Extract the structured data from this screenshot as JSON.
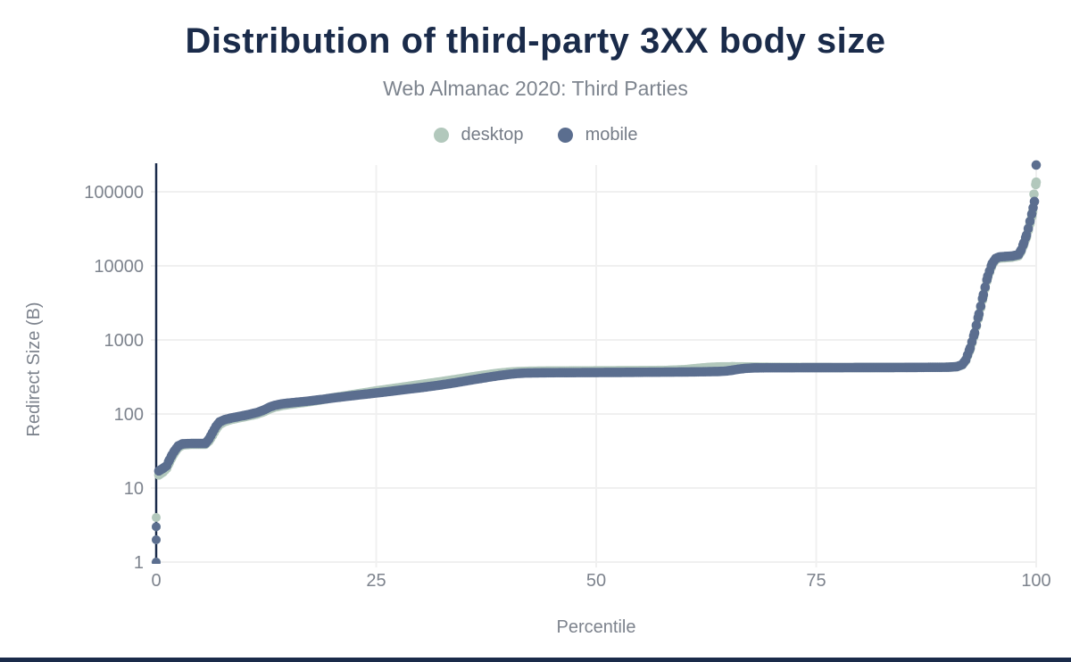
{
  "chart": {
    "title": "Distribution of third-party 3XX body size",
    "subtitle": "Web Almanac 2020: Third Parties",
    "xlabel": "Percentile",
    "ylabel": "Redirect Size (B)"
  },
  "colors": {
    "title": "#1a2b4a",
    "subtitle": "#7d848e",
    "tick_text": "#7d838d",
    "grid": "#f0f0f0",
    "axis": "#1a2b4a",
    "footer_bar": "#1a2b4a",
    "background": "#ffffff"
  },
  "chart_data": {
    "type": "scatter",
    "title": "Distribution of third-party 3XX body size",
    "subtitle": "Web Almanac 2020: Third Parties",
    "xlabel": "Percentile",
    "ylabel": "Redirect Size (B)",
    "x_ticks": [
      0,
      25,
      50,
      75,
      100
    ],
    "y_ticks": [
      1,
      10,
      100,
      1000,
      10000,
      100000
    ],
    "x_range": [
      0,
      100
    ],
    "y_range": [
      1,
      250000
    ],
    "y_scale": "log",
    "grid": true,
    "legend_position": "top",
    "series": [
      {
        "name": "desktop",
        "color": "#b2c8bc",
        "outliers": [
          [
            0,
            1
          ],
          [
            0,
            2
          ],
          [
            0,
            3
          ],
          [
            0,
            4
          ]
        ],
        "control_points": [
          [
            0.3,
            15
          ],
          [
            0.8,
            16.5
          ],
          [
            1.2,
            18.5
          ],
          [
            1.5,
            22
          ],
          [
            1.8,
            26
          ],
          [
            2.1,
            30
          ],
          [
            2.5,
            35
          ],
          [
            3,
            38
          ],
          [
            4,
            39
          ],
          [
            5.6,
            39
          ],
          [
            6,
            43
          ],
          [
            6.4,
            51
          ],
          [
            6.8,
            62
          ],
          [
            7.2,
            72
          ],
          [
            7.8,
            79
          ],
          [
            8.5,
            84
          ],
          [
            9.5,
            89
          ],
          [
            10.5,
            94
          ],
          [
            11.5,
            100
          ],
          [
            12.3,
            108
          ],
          [
            12.9,
            117
          ],
          [
            13.5,
            124
          ],
          [
            14.3,
            130
          ],
          [
            15,
            134
          ],
          [
            16,
            139
          ],
          [
            17,
            144
          ],
          [
            18,
            150
          ],
          [
            19,
            157
          ],
          [
            20,
            165
          ],
          [
            22,
            180
          ],
          [
            24,
            196
          ],
          [
            25,
            205
          ],
          [
            26,
            213
          ],
          [
            28,
            230
          ],
          [
            30,
            249
          ],
          [
            32,
            269
          ],
          [
            34,
            292
          ],
          [
            35,
            305
          ],
          [
            36,
            318
          ],
          [
            37,
            331
          ],
          [
            38,
            344
          ],
          [
            39,
            356
          ],
          [
            40,
            366
          ],
          [
            41,
            373
          ],
          [
            42,
            377
          ],
          [
            44,
            380
          ],
          [
            48,
            382
          ],
          [
            52,
            384
          ],
          [
            56,
            386
          ],
          [
            58,
            388
          ],
          [
            60,
            396
          ],
          [
            61,
            407
          ],
          [
            62,
            418
          ],
          [
            63,
            427
          ],
          [
            64,
            432
          ],
          [
            65.5,
            434
          ],
          [
            67,
            432
          ],
          [
            68,
            430
          ],
          [
            70,
            427
          ],
          [
            74,
            424
          ],
          [
            78,
            423
          ],
          [
            82,
            424
          ],
          [
            86,
            425
          ],
          [
            90,
            428
          ],
          [
            91,
            435
          ],
          [
            91.6,
            460
          ],
          [
            92,
            525
          ],
          [
            92.5,
            750
          ],
          [
            93,
            1200
          ],
          [
            93.5,
            2150
          ],
          [
            94,
            3900
          ],
          [
            94.5,
            7000
          ],
          [
            95,
            10300
          ],
          [
            95.4,
            12100
          ],
          [
            95.8,
            12700
          ],
          [
            96.5,
            12900
          ],
          [
            97.3,
            13100
          ],
          [
            98,
            13700
          ],
          [
            98.3,
            15800
          ],
          [
            98.6,
            19500
          ],
          [
            98.9,
            24500
          ],
          [
            99.1,
            30000
          ],
          [
            99.3,
            37000
          ],
          [
            99.5,
            46000
          ],
          [
            99.6,
            54000
          ],
          [
            99.75,
            93000
          ],
          [
            100,
            135000
          ]
        ]
      },
      {
        "name": "mobile",
        "color": "#5b6e8f",
        "outliers": [
          [
            0,
            1
          ],
          [
            0,
            2
          ],
          [
            0,
            3
          ]
        ],
        "control_points": [
          [
            0.3,
            17
          ],
          [
            0.8,
            18.5
          ],
          [
            1.2,
            20
          ],
          [
            1.5,
            24
          ],
          [
            1.8,
            28
          ],
          [
            2.1,
            32
          ],
          [
            2.5,
            37
          ],
          [
            3,
            39.5
          ],
          [
            4,
            40
          ],
          [
            5.6,
            40
          ],
          [
            6,
            46
          ],
          [
            6.4,
            56
          ],
          [
            6.8,
            68
          ],
          [
            7.2,
            78
          ],
          [
            7.8,
            84
          ],
          [
            8.5,
            88
          ],
          [
            9.5,
            93
          ],
          [
            10.5,
            98
          ],
          [
            11.5,
            105
          ],
          [
            12.3,
            114
          ],
          [
            12.9,
            124
          ],
          [
            13.5,
            131
          ],
          [
            14.3,
            137
          ],
          [
            15,
            140
          ],
          [
            16,
            144
          ],
          [
            17,
            148
          ],
          [
            18,
            153
          ],
          [
            19,
            158
          ],
          [
            20,
            164
          ],
          [
            22,
            175
          ],
          [
            24,
            186
          ],
          [
            25,
            192
          ],
          [
            26,
            198
          ],
          [
            28,
            212
          ],
          [
            30,
            226
          ],
          [
            32,
            243
          ],
          [
            34,
            264
          ],
          [
            35,
            277
          ],
          [
            36,
            290
          ],
          [
            37,
            303
          ],
          [
            38,
            317
          ],
          [
            39,
            330
          ],
          [
            40,
            342
          ],
          [
            41,
            352
          ],
          [
            42,
            357
          ],
          [
            44,
            360
          ],
          [
            48,
            362
          ],
          [
            52,
            364
          ],
          [
            56,
            366
          ],
          [
            60,
            369
          ],
          [
            62,
            371
          ],
          [
            64,
            375
          ],
          [
            64.8,
            380
          ],
          [
            65.5,
            390
          ],
          [
            66.2,
            403
          ],
          [
            67,
            413
          ],
          [
            68,
            419
          ],
          [
            70,
            421
          ],
          [
            74,
            422
          ],
          [
            78,
            423
          ],
          [
            82,
            424
          ],
          [
            86,
            425
          ],
          [
            90,
            428
          ],
          [
            91,
            436
          ],
          [
            91.6,
            465
          ],
          [
            92,
            540
          ],
          [
            92.5,
            780
          ],
          [
            93,
            1250
          ],
          [
            93.5,
            2250
          ],
          [
            94,
            4100
          ],
          [
            94.5,
            7300
          ],
          [
            95,
            10800
          ],
          [
            95.4,
            12600
          ],
          [
            95.8,
            13200
          ],
          [
            96.5,
            13400
          ],
          [
            97.3,
            13600
          ],
          [
            98,
            14200
          ],
          [
            98.3,
            16500
          ],
          [
            98.6,
            20500
          ],
          [
            98.9,
            26000
          ],
          [
            99.1,
            32000
          ],
          [
            99.3,
            40000
          ],
          [
            99.5,
            50000
          ],
          [
            99.65,
            61000
          ],
          [
            99.8,
            74000
          ],
          [
            100,
            230000
          ]
        ]
      }
    ]
  }
}
